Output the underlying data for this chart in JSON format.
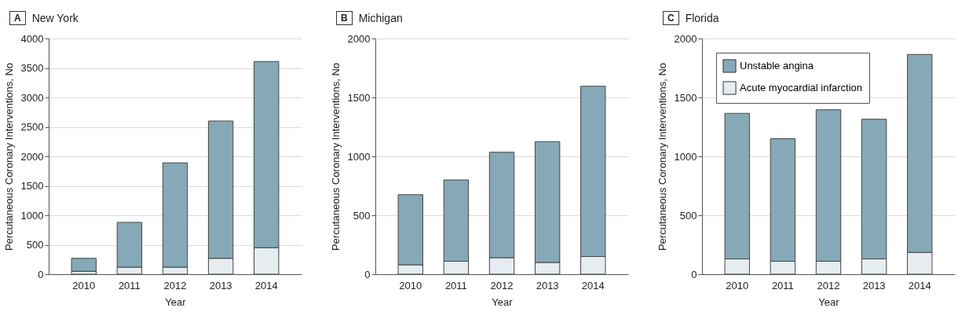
{
  "chart_data": [
    {
      "type": "bar",
      "title": "New York",
      "annotations": [
        "A"
      ],
      "xlabel": "Year",
      "ylabel": "Percutaneous Coronary Interventions, No",
      "categories": [
        "2010",
        "2011",
        "2012",
        "2013",
        "2014"
      ],
      "stacked": true,
      "ylim": [
        0,
        4000
      ],
      "yticks": [
        0,
        500,
        1000,
        1500,
        2000,
        2500,
        3000,
        3500,
        4000
      ],
      "grid": "y",
      "legend": false,
      "series": [
        {
          "color": "#e6edf0",
          "values": [
            50,
            120,
            120,
            270,
            450
          ]
        },
        {
          "color": "#86a9b7",
          "values": [
            220,
            760,
            1770,
            2330,
            3160
          ]
        }
      ]
    },
    {
      "type": "bar",
      "title": "Michigan",
      "annotations": [
        "B"
      ],
      "xlabel": "Year",
      "ylabel": "Percutaneous Coronary Interventions, No",
      "categories": [
        "2010",
        "2011",
        "2012",
        "2013",
        "2014"
      ],
      "stacked": true,
      "ylim": [
        0,
        2000
      ],
      "yticks": [
        0,
        500,
        1000,
        1500,
        2000
      ],
      "grid": "y",
      "legend": false,
      "series": [
        {
          "color": "#e6edf0",
          "values": [
            80,
            110,
            140,
            100,
            150
          ]
        },
        {
          "color": "#86a9b7",
          "values": [
            595,
            690,
            895,
            1025,
            1445
          ]
        }
      ]
    },
    {
      "type": "bar",
      "title": "Florida",
      "annotations": [
        "C"
      ],
      "xlabel": "Year",
      "ylabel": "Percutaneous Coronary Interventions, No",
      "categories": [
        "2010",
        "2011",
        "2012",
        "2013",
        "2014"
      ],
      "stacked": true,
      "ylim": [
        0,
        2000
      ],
      "yticks": [
        0,
        500,
        1000,
        1500,
        2000
      ],
      "grid": "y",
      "legend": "top left",
      "series": [
        {
          "name": "Acute myocardial infarction",
          "color": "#e6edf0",
          "values": [
            130,
            110,
            110,
            130,
            185
          ]
        },
        {
          "name": "Unstable angina",
          "color": "#86a9b7",
          "values": [
            1235,
            1040,
            1285,
            1185,
            1680
          ]
        }
      ]
    }
  ]
}
